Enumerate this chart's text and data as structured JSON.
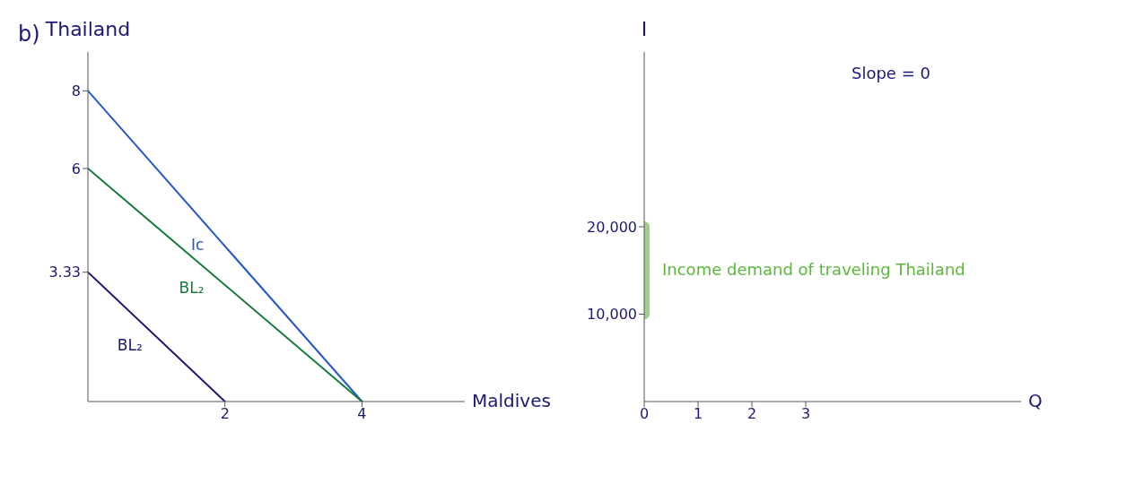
{
  "chart_data": [
    {
      "type": "line",
      "title": "b)",
      "xlabel": "Maldives",
      "ylabel": "Thailand",
      "xlim": [
        0,
        5.5
      ],
      "xticks": [
        2,
        4
      ],
      "ylim": [
        0,
        9
      ],
      "yticks": [
        3.33,
        6,
        8
      ],
      "grid": false,
      "legend": false,
      "marker": "none",
      "series": [
        {
          "name": "Ic",
          "color": "#2456c8",
          "x": [
            0,
            4
          ],
          "values": [
            8,
            0
          ]
        },
        {
          "name": "BL₂",
          "color": "#157a3c",
          "x": [
            0,
            4
          ],
          "values": [
            6,
            0
          ]
        },
        {
          "name": "BL₂",
          "color": "#1a1873",
          "x": [
            0,
            2
          ],
          "values": [
            3.33,
            0
          ]
        }
      ]
    },
    {
      "type": "line",
      "xlabel": "Q",
      "ylabel": "I",
      "xlim": [
        0,
        7
      ],
      "xticks": [
        0,
        1,
        2,
        3
      ],
      "ylim": [
        0,
        40000
      ],
      "yticks": [
        {
          "value": 10000,
          "label": "10,000"
        },
        {
          "value": 20000,
          "label": "20,000"
        }
      ],
      "grid": false,
      "legend": false,
      "marker": "none",
      "annotations": [
        "Slope = 0",
        {
          "text": "Income demand of traveling Thailand",
          "x": 0,
          "y": 15000
        }
      ],
      "series": [
        {
          "color": "#9fd08a",
          "x": [
            0,
            0
          ],
          "values": [
            10000,
            20000
          ]
        }
      ]
    }
  ]
}
